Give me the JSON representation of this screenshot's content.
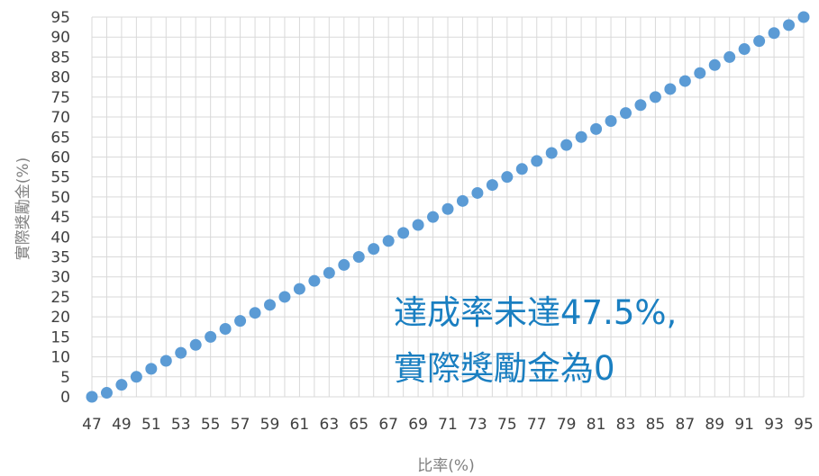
{
  "chart_data": {
    "type": "scatter",
    "title": "",
    "xlabel": "比率(%)",
    "ylabel": "實際獎勵金(%)",
    "xlim": [
      47,
      95
    ],
    "ylim": [
      0,
      95
    ],
    "x_ticks": [
      "47",
      "49",
      "51",
      "53",
      "55",
      "57",
      "59",
      "61",
      "63",
      "65",
      "67",
      "69",
      "71",
      "73",
      "75",
      "77",
      "79",
      "81",
      "83",
      "85",
      "87",
      "89",
      "91",
      "93",
      "95"
    ],
    "y_ticks": [
      "0",
      "5",
      "10",
      "15",
      "20",
      "25",
      "30",
      "35",
      "40",
      "45",
      "50",
      "55",
      "60",
      "65",
      "70",
      "75",
      "80",
      "85",
      "90",
      "95"
    ],
    "grid": true,
    "marker_color": "#5b9bd5",
    "series": [
      {
        "x": [
          47,
          48,
          49,
          50,
          51,
          52,
          53,
          54,
          55,
          56,
          57,
          58,
          59,
          60,
          61,
          62,
          63,
          64,
          65,
          66,
          67,
          68,
          69,
          70,
          71,
          72,
          73,
          74,
          75,
          76,
          77,
          78,
          79,
          80,
          81,
          82,
          83,
          84,
          85,
          86,
          87,
          88,
          89,
          90,
          91,
          92,
          93,
          94,
          95
        ],
        "y": [
          0,
          1,
          3,
          5,
          7,
          9,
          11,
          13,
          15,
          17,
          19,
          21,
          23,
          25,
          27,
          29,
          31,
          33,
          35,
          37,
          39,
          41,
          43,
          45,
          47,
          49,
          51,
          53,
          55,
          57,
          59,
          61,
          63,
          65,
          67,
          69,
          71,
          73,
          75,
          77,
          79,
          81,
          83,
          85,
          87,
          89,
          91,
          93,
          95
        ]
      }
    ],
    "annotation": {
      "lines": [
        "達成率未達47.5%,",
        "實際獎勵金為0"
      ],
      "color": "#1a7fc1"
    }
  }
}
